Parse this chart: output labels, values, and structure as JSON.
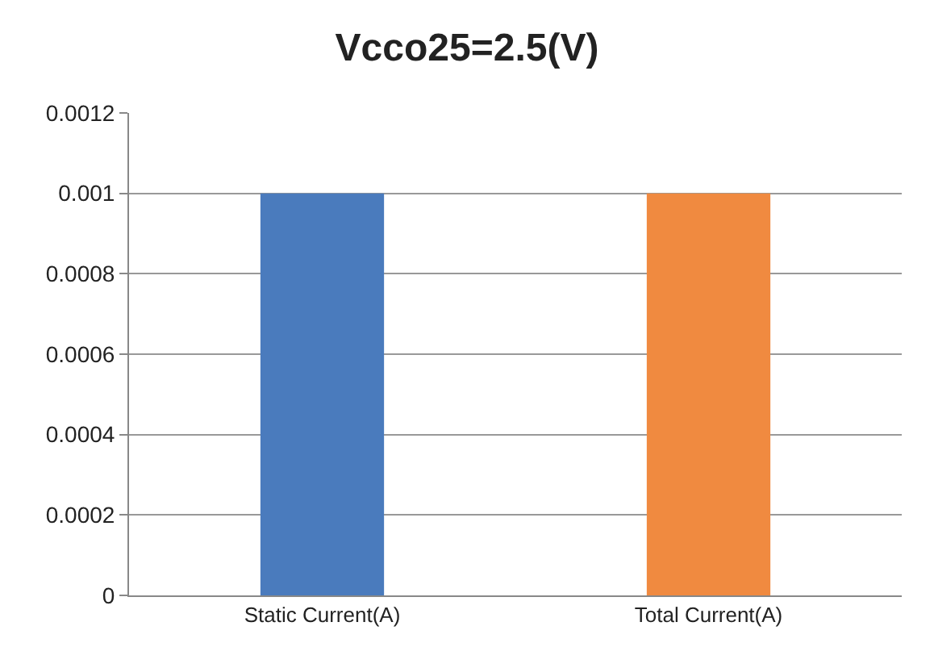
{
  "chart_data": {
    "type": "bar",
    "title": "Vcco25=2.5(V)",
    "categories": [
      "Static Current(A)",
      "Total Current(A)"
    ],
    "values": [
      0.001,
      0.001
    ],
    "colors": [
      "#4a7bbd",
      "#f08a40"
    ],
    "ylim": [
      0,
      0.0012
    ],
    "yticks": [
      0,
      0.0002,
      0.0004,
      0.0006,
      0.0008,
      0.001,
      0.0012
    ],
    "grid": "y"
  }
}
